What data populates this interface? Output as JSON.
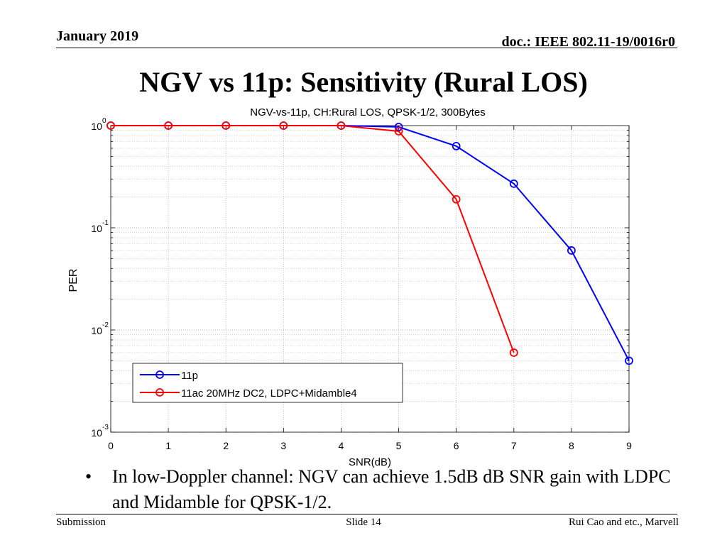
{
  "header": {
    "date": "January 2019",
    "doc": "doc.: IEEE 802.11-19/0016r0"
  },
  "slide_title": "NGV vs 11p: Sensitivity (Rural LOS)",
  "chart_data": {
    "type": "line",
    "title": "NGV-vs-11p, CH:Rural LOS, QPSK-1/2, 300Bytes",
    "xlabel": "SNR(dB)",
    "ylabel": "PER",
    "xlim": [
      0,
      9
    ],
    "ylim": [
      0.001,
      1
    ],
    "yscale": "log",
    "grid": true,
    "legend_position": "bottom-left",
    "x_ticks": [
      "0",
      "1",
      "2",
      "3",
      "4",
      "5",
      "6",
      "7",
      "8",
      "9"
    ],
    "y_ticks": [
      {
        "base": "10",
        "exp": "0"
      },
      {
        "base": "10",
        "exp": "-1"
      },
      {
        "base": "10",
        "exp": "-2"
      },
      {
        "base": "10",
        "exp": "-3"
      }
    ],
    "series": [
      {
        "name": "11p",
        "color": "#0000ff",
        "x": [
          0,
          1,
          2,
          3,
          4,
          5,
          6,
          7,
          8,
          9
        ],
        "values": [
          1,
          1,
          1,
          1,
          1,
          0.97,
          0.63,
          0.27,
          0.06,
          0.005
        ]
      },
      {
        "name": "11ac 20MHz DC2, LDPC+Midamble4",
        "color": "#ff0000",
        "x": [
          0,
          1,
          2,
          3,
          4,
          5,
          6,
          7
        ],
        "values": [
          1,
          1,
          1,
          1,
          1,
          0.88,
          0.19,
          0.006
        ]
      }
    ]
  },
  "bullet": {
    "marker": "•",
    "text": "In low-Doppler channel: NGV can achieve 1.5dB dB SNR gain with LDPC and Midamble for QPSK-1/2."
  },
  "footer": {
    "left": "Submission",
    "center": "Slide 14",
    "right": "Rui Cao and etc., Marvell"
  }
}
